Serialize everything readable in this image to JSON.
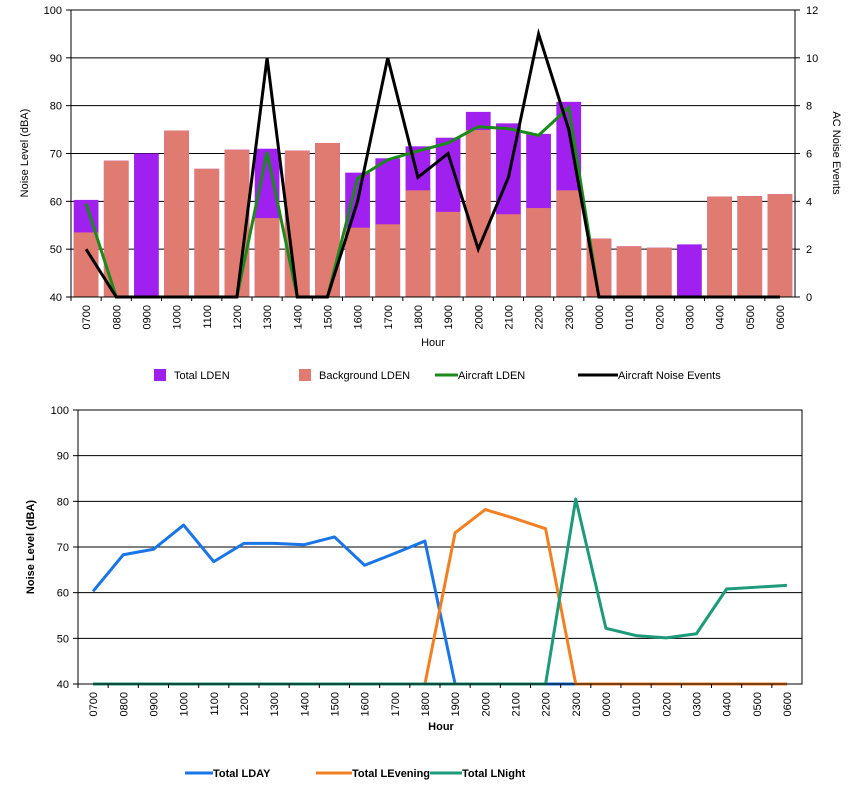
{
  "chart_data": [
    {
      "type": "bar",
      "xlabel": "Hour",
      "ylabel": "Noise Level (dBA)",
      "y2label": "AC Noise Events",
      "ylim": [
        40,
        100
      ],
      "y2lim": [
        0,
        12
      ],
      "yticks": [
        "40",
        "50",
        "60",
        "70",
        "80",
        "90",
        "100"
      ],
      "y2ticks": [
        "0",
        "2",
        "4",
        "6",
        "8",
        "10",
        "12"
      ],
      "grid": true,
      "legend_position": "bottom",
      "categories": [
        "0700",
        "0800",
        "0900",
        "1000",
        "1100",
        "1200",
        "1300",
        "1400",
        "1500",
        "1600",
        "1700",
        "1800",
        "1900",
        "2000",
        "2100",
        "2200",
        "2300",
        "0000",
        "0100",
        "0200",
        "0300",
        "0400",
        "0500",
        "0600"
      ],
      "series": [
        {
          "name": "Total LDEN",
          "kind": "bar",
          "color": "#a020f0",
          "values": [
            60.3,
            68.5,
            70,
            74.8,
            66.8,
            70.8,
            71,
            70.6,
            72.2,
            66,
            69,
            71.5,
            73.3,
            78.7,
            76.3,
            74.1,
            80.8,
            52.2,
            50.6,
            50.3,
            51,
            61,
            61.1,
            61.5
          ]
        },
        {
          "name": "Background LDEN",
          "kind": "bar",
          "color": "#e07b72",
          "values": [
            53.5,
            68.5,
            40,
            74.8,
            66.8,
            70.8,
            56.5,
            70.6,
            72.2,
            54.5,
            55.2,
            62.3,
            57.8,
            74.9,
            57.3,
            58.6,
            62.3,
            52.2,
            50.6,
            50.3,
            40,
            61,
            61.1,
            61.5
          ]
        },
        {
          "name": "Aircraft LDEN",
          "kind": "line",
          "axis": "left",
          "color": "#1a8a1a",
          "values": [
            59.5,
            40,
            40,
            40,
            40,
            40,
            70.3,
            40,
            40,
            64.8,
            68.7,
            70.5,
            72.2,
            75.6,
            75.2,
            73.8,
            79.6,
            40,
            40,
            40,
            40,
            40,
            40,
            40
          ]
        },
        {
          "name": "Aircraft Noise Events",
          "kind": "line",
          "axis": "right",
          "color": "#000000",
          "values": [
            2,
            0,
            0,
            0,
            0,
            0,
            10,
            0,
            0,
            4,
            10,
            5,
            6,
            2,
            5,
            11,
            7,
            0,
            0,
            0,
            0,
            0,
            0,
            0
          ]
        }
      ]
    },
    {
      "type": "line",
      "xlabel": "Hour",
      "ylabel": "Noise Level (dBA)",
      "ylim": [
        40,
        100
      ],
      "yticks": [
        "40",
        "50",
        "60",
        "70",
        "80",
        "90",
        "100"
      ],
      "grid": true,
      "legend_position": "bottom",
      "categories": [
        "0700",
        "0800",
        "0900",
        "1000",
        "1100",
        "1200",
        "1300",
        "1400",
        "1500",
        "1600",
        "1700",
        "1800",
        "1900",
        "2000",
        "2100",
        "2200",
        "2300",
        "0000",
        "0100",
        "0200",
        "0300",
        "0400",
        "0500",
        "0600"
      ],
      "series": [
        {
          "name": "Total LDAY",
          "color": "#1a75e6",
          "values": [
            60.3,
            68.3,
            69.5,
            74.8,
            66.8,
            70.8,
            70.8,
            70.5,
            72.2,
            66,
            68.6,
            71.3,
            40,
            40,
            40,
            40,
            40,
            40,
            40,
            40,
            40,
            40,
            40,
            40
          ]
        },
        {
          "name": "Total LEvening",
          "color": "#f28022",
          "values": [
            40,
            40,
            40,
            40,
            40,
            40,
            40,
            40,
            40,
            40,
            40,
            40,
            73.1,
            78.2,
            76.2,
            74,
            40,
            40,
            40,
            40,
            40,
            40,
            40,
            40
          ]
        },
        {
          "name": "Total LNight",
          "color": "#1c9a7a",
          "values": [
            40,
            40,
            40,
            40,
            40,
            40,
            40,
            40,
            40,
            40,
            40,
            40,
            40,
            40,
            40,
            40,
            80.5,
            52.2,
            50.6,
            50.1,
            51,
            60.8,
            61.2,
            61.6
          ]
        }
      ]
    }
  ]
}
